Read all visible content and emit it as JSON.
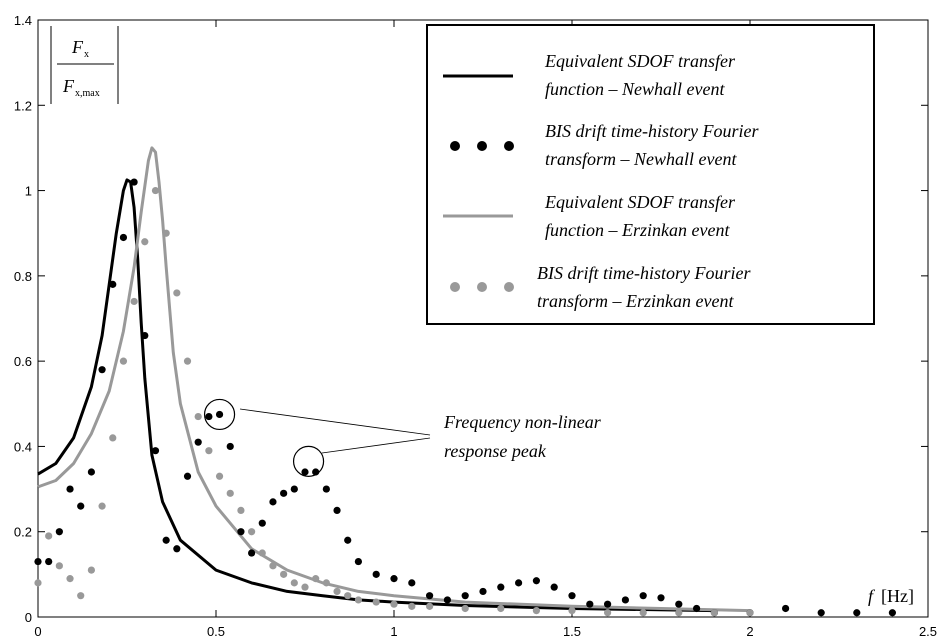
{
  "chart_data": {
    "type": "line",
    "xlim": [
      0,
      2.5
    ],
    "ylim": [
      0,
      1.4
    ],
    "x_ticks": [
      "0",
      "0.5",
      "1",
      "1.5",
      "2",
      "2.5"
    ],
    "y_ticks": [
      "0",
      "0.2",
      "0.4",
      "0.6",
      "0.8",
      "1",
      "1.2",
      "1.4"
    ],
    "grid": false,
    "legend_position": "top-right",
    "ylabel": {
      "numerator": "F",
      "numerator_sub": "x",
      "denominator": "F",
      "denominator_sub": "x,max"
    },
    "xlabel": {
      "symbol": "f",
      "unit": "[Hz]"
    },
    "annotation": {
      "lines": [
        "Frequency  non-linear",
        "response peak"
      ],
      "circled_points": [
        [
          0.51,
          0.475
        ],
        [
          0.76,
          0.365
        ]
      ]
    },
    "colors": {
      "newhall": "#000000",
      "erzinkan": "#999999"
    },
    "series": [
      {
        "name_lines": [
          "Equivalent   SDOF   transfer",
          "function – Newhall event"
        ],
        "kind": "line",
        "color": "#000000",
        "x": [
          0,
          0.05,
          0.1,
          0.15,
          0.18,
          0.2,
          0.22,
          0.24,
          0.25,
          0.26,
          0.27,
          0.28,
          0.29,
          0.3,
          0.32,
          0.35,
          0.4,
          0.5,
          0.6,
          0.7,
          0.8,
          0.9,
          1.0,
          1.2,
          1.5,
          1.9
        ],
        "y": [
          0.335,
          0.36,
          0.42,
          0.54,
          0.66,
          0.78,
          0.9,
          1.0,
          1.025,
          1.02,
          0.96,
          0.84,
          0.69,
          0.56,
          0.38,
          0.27,
          0.18,
          0.11,
          0.08,
          0.06,
          0.05,
          0.04,
          0.035,
          0.027,
          0.02,
          0.015
        ]
      },
      {
        "name_lines": [
          "BIS  drift  time-history  Fourier",
          "transform – Newhall event"
        ],
        "kind": "scatter",
        "color": "#000000",
        "x": [
          0,
          0.03,
          0.06,
          0.09,
          0.12,
          0.15,
          0.18,
          0.21,
          0.24,
          0.27,
          0.3,
          0.33,
          0.36,
          0.39,
          0.42,
          0.45,
          0.48,
          0.51,
          0.54,
          0.57,
          0.6,
          0.63,
          0.66,
          0.69,
          0.72,
          0.75,
          0.78,
          0.81,
          0.84,
          0.87,
          0.9,
          0.95,
          1.0,
          1.05,
          1.1,
          1.15,
          1.2,
          1.25,
          1.3,
          1.35,
          1.4,
          1.45,
          1.5,
          1.55,
          1.6,
          1.65,
          1.7,
          1.75,
          1.8,
          1.85,
          1.9,
          2.0,
          2.1,
          2.2,
          2.3,
          2.4
        ],
        "y": [
          0.13,
          0.13,
          0.2,
          0.3,
          0.26,
          0.34,
          0.58,
          0.78,
          0.89,
          1.02,
          0.66,
          0.39,
          0.18,
          0.16,
          0.33,
          0.41,
          0.47,
          0.475,
          0.4,
          0.2,
          0.15,
          0.22,
          0.27,
          0.29,
          0.3,
          0.34,
          0.34,
          0.3,
          0.25,
          0.18,
          0.13,
          0.1,
          0.09,
          0.08,
          0.05,
          0.04,
          0.05,
          0.06,
          0.07,
          0.08,
          0.085,
          0.07,
          0.05,
          0.03,
          0.03,
          0.04,
          0.05,
          0.045,
          0.03,
          0.02,
          0.01,
          0.01,
          0.02,
          0.01,
          0.01,
          0.01
        ]
      },
      {
        "name_lines": [
          "Equivalent   SDOF   transfer",
          "function – Erzinkan event"
        ],
        "kind": "line",
        "color": "#999999",
        "x": [
          0,
          0.05,
          0.1,
          0.15,
          0.2,
          0.24,
          0.27,
          0.29,
          0.31,
          0.32,
          0.33,
          0.34,
          0.35,
          0.36,
          0.38,
          0.4,
          0.45,
          0.5,
          0.6,
          0.7,
          0.8,
          0.9,
          1.0,
          1.2,
          1.5,
          2.0
        ],
        "y": [
          0.305,
          0.32,
          0.36,
          0.43,
          0.53,
          0.67,
          0.82,
          0.95,
          1.07,
          1.1,
          1.09,
          1.02,
          0.93,
          0.82,
          0.62,
          0.5,
          0.34,
          0.26,
          0.16,
          0.11,
          0.08,
          0.06,
          0.05,
          0.035,
          0.025,
          0.015
        ]
      },
      {
        "name_lines": [
          "BIS  drift  time-history  Fourier",
          "transform – Erzinkan event"
        ],
        "kind": "scatter",
        "color": "#999999",
        "x": [
          0,
          0.03,
          0.06,
          0.09,
          0.12,
          0.15,
          0.18,
          0.21,
          0.24,
          0.27,
          0.3,
          0.33,
          0.36,
          0.39,
          0.42,
          0.45,
          0.48,
          0.51,
          0.54,
          0.57,
          0.6,
          0.63,
          0.66,
          0.69,
          0.72,
          0.75,
          0.78,
          0.81,
          0.84,
          0.87,
          0.9,
          0.95,
          1.0,
          1.05,
          1.1,
          1.2,
          1.3,
          1.4,
          1.5,
          1.6,
          1.7,
          1.8,
          1.9,
          2.0
        ],
        "y": [
          0.08,
          0.19,
          0.12,
          0.09,
          0.05,
          0.11,
          0.26,
          0.42,
          0.6,
          0.74,
          0.88,
          1.0,
          0.9,
          0.76,
          0.6,
          0.47,
          0.39,
          0.33,
          0.29,
          0.25,
          0.2,
          0.15,
          0.12,
          0.1,
          0.08,
          0.07,
          0.09,
          0.08,
          0.06,
          0.05,
          0.04,
          0.035,
          0.03,
          0.025,
          0.025,
          0.02,
          0.02,
          0.015,
          0.015,
          0.01,
          0.01,
          0.01,
          0.01,
          0.01
        ]
      }
    ]
  }
}
